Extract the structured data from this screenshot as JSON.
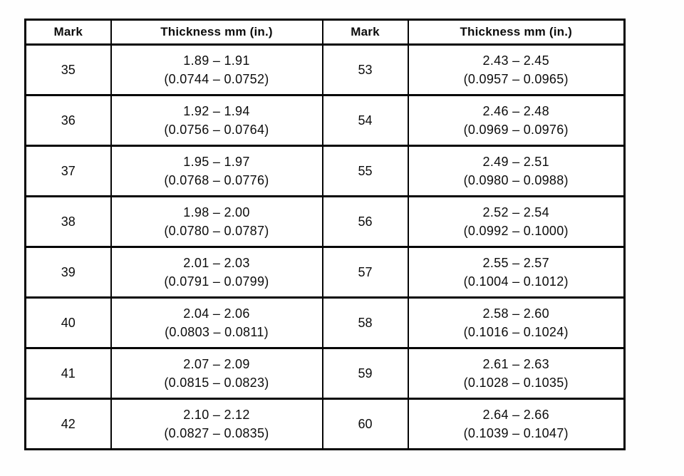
{
  "table": {
    "headers": {
      "mark_left": "Mark",
      "thickness_left": "Thickness mm (in.)",
      "mark_right": "Mark",
      "thickness_right": "Thickness mm (in.)"
    },
    "rows": [
      {
        "left": {
          "mark": "35",
          "mm": "1.89 – 1.91",
          "in": "(0.0744 – 0.0752)"
        },
        "right": {
          "mark": "53",
          "mm": "2.43 – 2.45",
          "in": "(0.0957 – 0.0965)"
        }
      },
      {
        "left": {
          "mark": "36",
          "mm": "1.92 – 1.94",
          "in": "(0.0756 – 0.0764)"
        },
        "right": {
          "mark": "54",
          "mm": "2.46 – 2.48",
          "in": "(0.0969 – 0.0976)"
        }
      },
      {
        "left": {
          "mark": "37",
          "mm": "1.95 – 1.97",
          "in": "(0.0768 – 0.0776)"
        },
        "right": {
          "mark": "55",
          "mm": "2.49 – 2.51",
          "in": "(0.0980 – 0.0988)"
        }
      },
      {
        "left": {
          "mark": "38",
          "mm": "1.98 – 2.00",
          "in": "(0.0780 – 0.0787)"
        },
        "right": {
          "mark": "56",
          "mm": "2.52 – 2.54",
          "in": "(0.0992 – 0.1000)"
        }
      },
      {
        "left": {
          "mark": "39",
          "mm": "2.01 – 2.03",
          "in": "(0.0791 – 0.0799)"
        },
        "right": {
          "mark": "57",
          "mm": "2.55 – 2.57",
          "in": "(0.1004 – 0.1012)"
        }
      },
      {
        "left": {
          "mark": "40",
          "mm": "2.04 – 2.06",
          "in": "(0.0803 – 0.0811)"
        },
        "right": {
          "mark": "58",
          "mm": "2.58 – 2.60",
          "in": "(0.1016 – 0.1024)"
        }
      },
      {
        "left": {
          "mark": "41",
          "mm": "2.07 – 2.09",
          "in": "(0.0815 – 0.0823)"
        },
        "right": {
          "mark": "59",
          "mm": "2.61 – 2.63",
          "in": "(0.1028 – 0.1035)"
        }
      },
      {
        "left": {
          "mark": "42",
          "mm": "2.10 – 2.12",
          "in": "(0.0827 – 0.0835)"
        },
        "right": {
          "mark": "60",
          "mm": "2.64 – 2.66",
          "in": "(0.1039 – 0.1047)"
        }
      }
    ]
  }
}
